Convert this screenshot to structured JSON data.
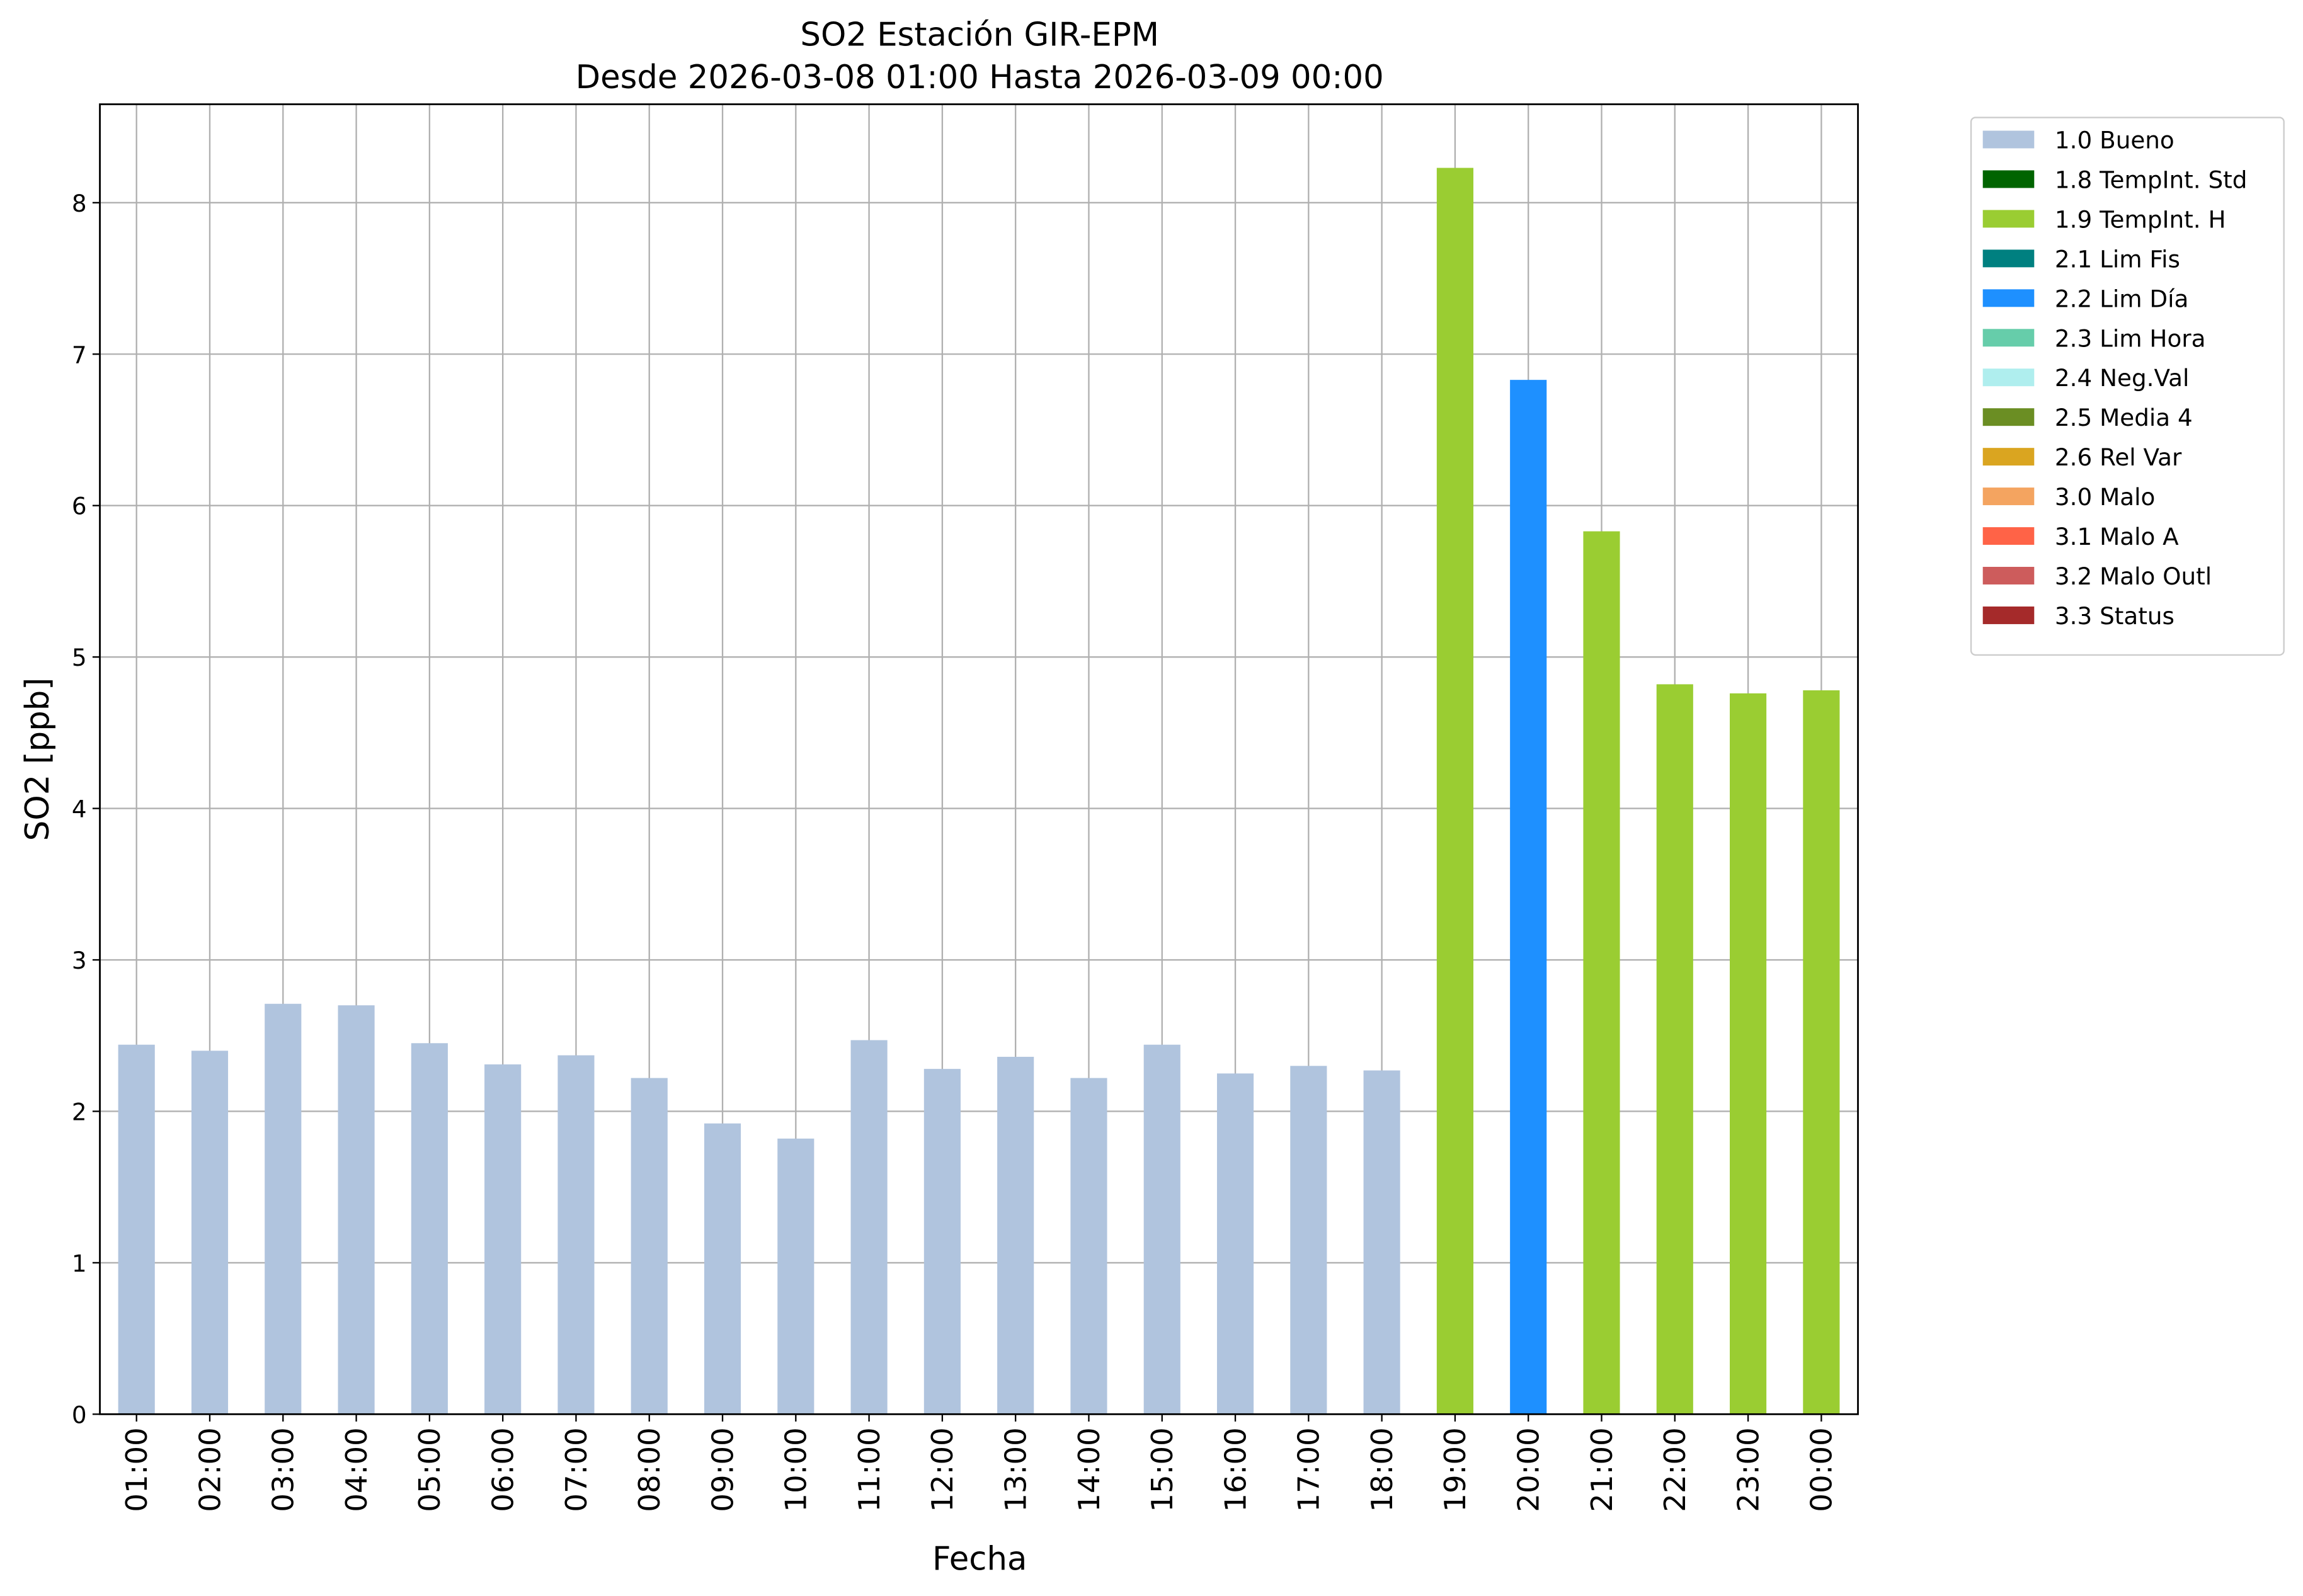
{
  "chart_data": {
    "type": "stacked_bar",
    "title": "SO2 Estación GIR-EPM",
    "subtitle": "Desde 2026-03-08 01:00 Hasta 2026-03-09 00:00",
    "x_label": "Fecha",
    "y_label": "SO2 [ppb]",
    "categories": [
      "01:00",
      "02:00",
      "03:00",
      "04:00",
      "05:00",
      "06:00",
      "07:00",
      "08:00",
      "09:00",
      "10:00",
      "11:00",
      "12:00",
      "13:00",
      "14:00",
      "15:00",
      "16:00",
      "17:00",
      "18:00",
      "19:00",
      "20:00",
      "21:00",
      "22:00",
      "23:00",
      "00:00"
    ],
    "series": [
      {
        "name": "1.0 Bueno",
        "color": "#b0c4de",
        "values": [
          2.44,
          2.4,
          2.71,
          2.7,
          2.45,
          2.31,
          2.37,
          2.22,
          1.92,
          1.82,
          2.47,
          2.28,
          2.36,
          2.22,
          2.44,
          2.25,
          2.3,
          2.27,
          null,
          null,
          null,
          null,
          null,
          null
        ]
      },
      {
        "name": "1.8 TempInt. Std",
        "color": "#006400",
        "values": [
          null,
          null,
          null,
          null,
          null,
          null,
          null,
          null,
          null,
          null,
          null,
          null,
          null,
          null,
          null,
          null,
          null,
          null,
          null,
          null,
          null,
          null,
          null,
          null
        ]
      },
      {
        "name": "1.9 TempInt. H",
        "color": "#9acd32",
        "values": [
          null,
          null,
          null,
          null,
          null,
          null,
          null,
          null,
          null,
          null,
          null,
          null,
          null,
          null,
          null,
          null,
          null,
          null,
          8.23,
          null,
          5.83,
          4.82,
          4.76,
          4.78
        ]
      },
      {
        "name": "2.1 Lim Fis",
        "color": "#008080",
        "values": [
          null,
          null,
          null,
          null,
          null,
          null,
          null,
          null,
          null,
          null,
          null,
          null,
          null,
          null,
          null,
          null,
          null,
          null,
          null,
          null,
          null,
          null,
          null,
          null
        ]
      },
      {
        "name": "2.2 Lim Día",
        "color": "#1e90ff",
        "values": [
          null,
          null,
          null,
          null,
          null,
          null,
          null,
          null,
          null,
          null,
          null,
          null,
          null,
          null,
          null,
          null,
          null,
          null,
          null,
          6.83,
          null,
          null,
          null,
          null
        ]
      },
      {
        "name": "2.3 Lim Hora",
        "color": "#66cdaa",
        "values": [
          null,
          null,
          null,
          null,
          null,
          null,
          null,
          null,
          null,
          null,
          null,
          null,
          null,
          null,
          null,
          null,
          null,
          null,
          null,
          null,
          null,
          null,
          null,
          null
        ]
      },
      {
        "name": "2.4 Neg.Val",
        "color": "#afeeee",
        "values": [
          null,
          null,
          null,
          null,
          null,
          null,
          null,
          null,
          null,
          null,
          null,
          null,
          null,
          null,
          null,
          null,
          null,
          null,
          null,
          null,
          null,
          null,
          null,
          null
        ]
      },
      {
        "name": "2.5 Media 4",
        "color": "#6b8e23",
        "values": [
          null,
          null,
          null,
          null,
          null,
          null,
          null,
          null,
          null,
          null,
          null,
          null,
          null,
          null,
          null,
          null,
          null,
          null,
          null,
          null,
          null,
          null,
          null,
          null
        ]
      },
      {
        "name": "2.6 Rel Var",
        "color": "#daa520",
        "values": [
          null,
          null,
          null,
          null,
          null,
          null,
          null,
          null,
          null,
          null,
          null,
          null,
          null,
          null,
          null,
          null,
          null,
          null,
          null,
          null,
          null,
          null,
          null,
          null
        ]
      },
      {
        "name": "3.0 Malo",
        "color": "#f4a460",
        "values": [
          null,
          null,
          null,
          null,
          null,
          null,
          null,
          null,
          null,
          null,
          null,
          null,
          null,
          null,
          null,
          null,
          null,
          null,
          null,
          null,
          null,
          null,
          null,
          null
        ]
      },
      {
        "name": "3.1 Malo A",
        "color": "#ff6347",
        "values": [
          null,
          null,
          null,
          null,
          null,
          null,
          null,
          null,
          null,
          null,
          null,
          null,
          null,
          null,
          null,
          null,
          null,
          null,
          null,
          null,
          null,
          null,
          null,
          null
        ]
      },
      {
        "name": "3.2 Malo Outl",
        "color": "#cd5c5c",
        "values": [
          null,
          null,
          null,
          null,
          null,
          null,
          null,
          null,
          null,
          null,
          null,
          null,
          null,
          null,
          null,
          null,
          null,
          null,
          null,
          null,
          null,
          null,
          null,
          null
        ]
      },
      {
        "name": "3.3 Status",
        "color": "#a52a2a",
        "values": [
          null,
          null,
          null,
          null,
          null,
          null,
          null,
          null,
          null,
          null,
          null,
          null,
          null,
          null,
          null,
          null,
          null,
          null,
          null,
          null,
          null,
          null,
          null,
          null
        ]
      }
    ],
    "ylim": [
      0,
      8.65
    ],
    "yticks": [
      0,
      1,
      2,
      3,
      4,
      5,
      6,
      7,
      8
    ],
    "grid": true,
    "legend": "outside upper right"
  }
}
